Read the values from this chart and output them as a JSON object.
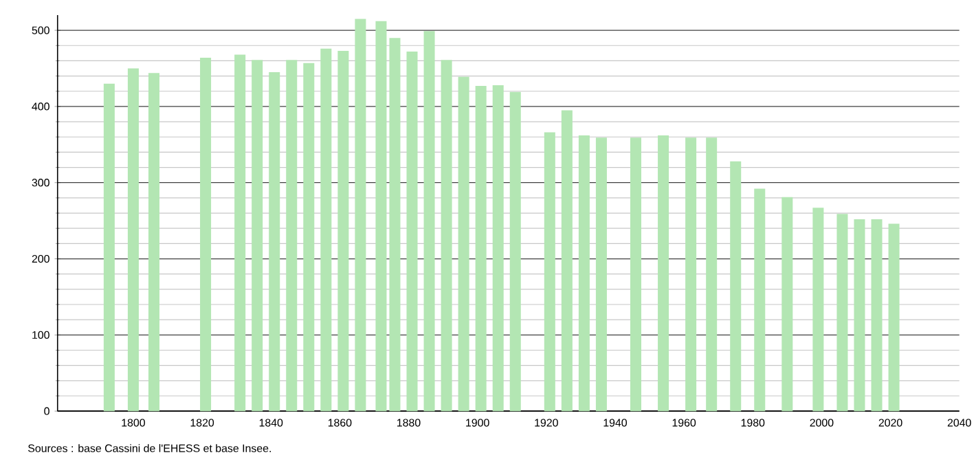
{
  "chart_data": {
    "type": "bar",
    "x": [
      1793,
      1800,
      1806,
      1821,
      1831,
      1836,
      1841,
      1846,
      1851,
      1856,
      1861,
      1866,
      1872,
      1876,
      1881,
      1886,
      1891,
      1896,
      1901,
      1906,
      1911,
      1921,
      1926,
      1931,
      1936,
      1946,
      1954,
      1962,
      1968,
      1975,
      1982,
      1990,
      1999,
      2006,
      2011,
      2016,
      2021
    ],
    "values": [
      430,
      450,
      444,
      464,
      468,
      461,
      445,
      461,
      457,
      476,
      473,
      515,
      512,
      490,
      472,
      499,
      461,
      439,
      427,
      428,
      419,
      366,
      395,
      362,
      359,
      359,
      362,
      359,
      359,
      328,
      292,
      281,
      267,
      259,
      252,
      252,
      246
    ],
    "color": "#b3e6b3",
    "xlim": [
      1778,
      2040
    ],
    "xticks": [
      1800,
      1820,
      1840,
      1860,
      1880,
      1900,
      1920,
      1940,
      1960,
      1980,
      2000,
      2020,
      2040
    ],
    "ylim": [
      0,
      520
    ],
    "yticks": [
      0,
      100,
      200,
      300,
      400,
      500
    ],
    "grid": "y",
    "annotations": [
      "Sources : base Cassini de l'EHESS et base Insee."
    ]
  }
}
